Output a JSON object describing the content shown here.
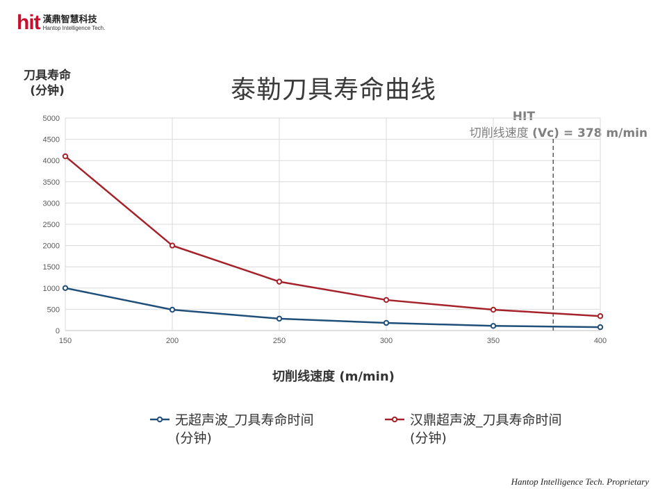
{
  "logo": {
    "mark": "hit",
    "name_cn": "漢鼎智慧科技",
    "name_en": "Hantop Intelligence Tech."
  },
  "footer": "Hantop Intelligence Tech. Proprietary",
  "chart_data": {
    "type": "line",
    "title": "泰勒刀具寿命曲线",
    "xlabel": "切削线速度 (m/min)",
    "ylabel_line1": "刀具寿命",
    "ylabel_line2": "(分钟)",
    "x": [
      150,
      200,
      250,
      300,
      350,
      400
    ],
    "xlim": [
      150,
      400
    ],
    "ylim": [
      0,
      5000
    ],
    "x_ticks": [
      150,
      200,
      250,
      300,
      350,
      400
    ],
    "y_ticks": [
      0,
      500,
      1000,
      1500,
      2000,
      2500,
      3000,
      3500,
      4000,
      4500,
      5000
    ],
    "grid": true,
    "legend_position": "bottom",
    "series": [
      {
        "name": "无超声波_刀具寿命时间\n(分钟)",
        "color": "#1f4e79",
        "values": [
          1000,
          490,
          280,
          180,
          110,
          80
        ]
      },
      {
        "name": "汉鼎超声波_刀具寿命时间\n(分钟)",
        "color": "#a5222b",
        "values": [
          4100,
          2000,
          1150,
          720,
          490,
          340
        ]
      }
    ],
    "annotation": {
      "line1": "HIT",
      "line2_cn": "切削线速度 ",
      "line2_en": "(Vc) = 378 m/min",
      "x": 378,
      "color": "#595959"
    }
  }
}
